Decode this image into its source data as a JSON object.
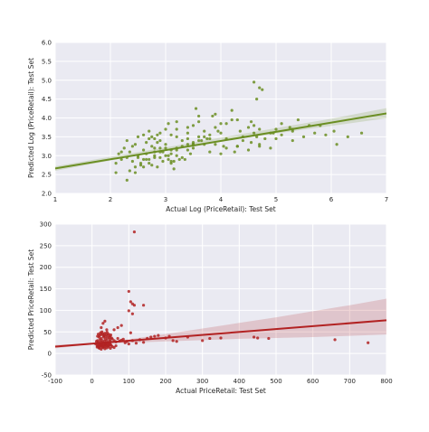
{
  "chart_data": [
    {
      "type": "scatter",
      "xlabel": "Actual Log (PriceRetail): Test Set",
      "ylabel": "Predicted Log (PriceRetail): Test Set",
      "xlim": [
        1,
        7
      ],
      "ylim": [
        2.0,
        6.0
      ],
      "x_ticks": [
        1,
        2,
        3,
        4,
        5,
        6,
        7
      ],
      "y_ticks": [
        2.0,
        2.5,
        3.0,
        3.5,
        4.0,
        4.5,
        5.0,
        5.5,
        6.0
      ],
      "x_tick_labels": [
        "1",
        "2",
        "3",
        "4",
        "5",
        "6",
        "7"
      ],
      "y_tick_labels": [
        "2.0",
        "2.5",
        "3.0",
        "3.5",
        "4.0",
        "4.5",
        "5.0",
        "5.5",
        "6.0"
      ],
      "grid": true,
      "background": "#eaeaf2",
      "point_color": "#6b8e23",
      "line_color": "#6b8e23",
      "ci_color": "#6b8e23",
      "regression": {
        "x": [
          1,
          7
        ],
        "y": [
          2.66,
          4.12
        ]
      },
      "ci_band": {
        "x": [
          1,
          2,
          3,
          4,
          5,
          6,
          7
        ],
        "lower": [
          2.6,
          2.87,
          3.16,
          3.38,
          3.59,
          3.79,
          3.99
        ],
        "upper": [
          2.72,
          2.97,
          3.22,
          3.48,
          3.73,
          3.98,
          4.26
        ]
      },
      "points": {
        "x": [
          2.1,
          2.15,
          2.2,
          2.25,
          2.3,
          2.35,
          2.4,
          2.45,
          2.5,
          2.55,
          2.6,
          2.65,
          2.7,
          2.75,
          2.8,
          2.85,
          2.9,
          2.95,
          3.0,
          3.05,
          2.3,
          2.4,
          2.5,
          2.6,
          2.7,
          2.8,
          2.9,
          3.0,
          3.1,
          3.2,
          2.35,
          2.45,
          2.55,
          2.65,
          2.75,
          2.85,
          2.95,
          3.05,
          3.15,
          3.25,
          2.6,
          2.7,
          2.8,
          2.9,
          3.0,
          3.1,
          3.2,
          3.3,
          3.4,
          3.5,
          2.7,
          2.8,
          2.9,
          3.0,
          3.1,
          3.2,
          3.3,
          3.4,
          3.5,
          3.6,
          3.1,
          3.2,
          3.3,
          3.4,
          3.5,
          3.6,
          3.7,
          3.8,
          3.9,
          4.0,
          3.2,
          3.4,
          3.6,
          3.8,
          4.0,
          4.2,
          4.4,
          4.6,
          4.8,
          5.0,
          3.5,
          3.7,
          3.9,
          4.1,
          4.3,
          4.5,
          4.7,
          4.9,
          5.1,
          5.3,
          4.1,
          4.3,
          4.5,
          4.7,
          4.9,
          5.1,
          5.3,
          5.5,
          5.7,
          5.9,
          2.2,
          2.5,
          2.8,
          3.1,
          3.4,
          3.7,
          4.0,
          4.3,
          2.45,
          2.75,
          3.05,
          3.35,
          3.65,
          3.95,
          4.25,
          4.55,
          2.6,
          2.9,
          3.2,
          3.5,
          3.8,
          4.1,
          4.4,
          4.7,
          5.0,
          5.3,
          2.65,
          2.85,
          3.15,
          3.45,
          3.75,
          4.05,
          4.35,
          4.65,
          4.95,
          5.25,
          2.1,
          2.3,
          3.6,
          3.9,
          4.2,
          4.6,
          5.4,
          5.6,
          6.05,
          6.3,
          6.55,
          6.1,
          4.75,
          4.6,
          4.7,
          4.65,
          4.55,
          5.8,
          3.55,
          3.85
        ],
        "y": [
          2.8,
          3.05,
          2.9,
          3.2,
          2.95,
          3.1,
          2.85,
          3.3,
          3.0,
          2.75,
          3.15,
          3.05,
          2.9,
          3.25,
          3.0,
          3.35,
          2.95,
          3.1,
          3.2,
          2.9,
          3.4,
          3.25,
          3.5,
          2.7,
          3.45,
          3.1,
          3.6,
          3.3,
          3.05,
          3.2,
          2.6,
          2.55,
          2.8,
          2.9,
          2.75,
          2.7,
          2.85,
          3.0,
          2.65,
          2.9,
          3.55,
          3.65,
          3.2,
          3.4,
          3.7,
          3.15,
          3.5,
          3.25,
          3.45,
          3.3,
          2.8,
          2.95,
          3.1,
          3.0,
          2.85,
          3.15,
          2.95,
          3.3,
          3.2,
          3.4,
          3.55,
          3.7,
          3.4,
          3.6,
          3.8,
          3.5,
          3.65,
          3.45,
          3.75,
          3.6,
          3.9,
          3.75,
          4.05,
          3.55,
          3.85,
          3.95,
          3.5,
          3.6,
          3.45,
          3.7,
          3.35,
          3.5,
          3.3,
          3.45,
          3.25,
          3.15,
          3.3,
          3.2,
          3.55,
          3.65,
          3.85,
          3.95,
          3.75,
          3.7,
          3.6,
          3.85,
          3.7,
          3.5,
          3.6,
          3.55,
          3.1,
          2.95,
          3.45,
          2.8,
          3.15,
          3.3,
          3.05,
          3.25,
          2.7,
          3.5,
          3.85,
          2.9,
          3.4,
          3.65,
          3.1,
          3.35,
          2.9,
          3.2,
          3.0,
          3.3,
          3.1,
          3.2,
          3.4,
          3.25,
          3.45,
          3.4,
          3.35,
          3.55,
          2.85,
          3.05,
          3.45,
          3.25,
          3.65,
          3.5,
          3.6,
          3.75,
          2.55,
          2.35,
          3.9,
          4.1,
          4.2,
          3.8,
          3.95,
          3.8,
          3.65,
          3.5,
          3.6,
          3.3,
          4.75,
          4.95,
          4.8,
          4.5,
          3.9,
          3.8,
          4.25,
          4.05
        ]
      }
    },
    {
      "type": "scatter",
      "xlabel": "Actual PriceRetail: Test Set",
      "ylabel": "Predicted PriceRetail: Test Set",
      "xlim": [
        -100,
        800
      ],
      "ylim": [
        -50,
        300
      ],
      "x_ticks": [
        -100,
        0,
        100,
        200,
        300,
        400,
        500,
        600,
        700,
        800
      ],
      "y_ticks": [
        -50,
        0,
        50,
        100,
        150,
        200,
        250,
        300
      ],
      "x_tick_labels": [
        "-100",
        "0",
        "100",
        "200",
        "300",
        "400",
        "500",
        "600",
        "700",
        "800"
      ],
      "y_tick_labels": [
        "-50",
        "0",
        "50",
        "100",
        "150",
        "200",
        "250",
        "300"
      ],
      "grid": true,
      "background": "#eaeaf2",
      "point_color": "#b22222",
      "line_color": "#b22222",
      "ci_color": "#b22222",
      "regression": {
        "x": [
          -100,
          800
        ],
        "y": [
          16,
          77
        ]
      },
      "ci_band": {
        "x": [
          -100,
          0,
          100,
          200,
          300,
          400,
          500,
          600,
          700,
          800
        ],
        "lower": [
          12,
          21,
          25,
          28,
          31,
          34,
          36,
          38,
          41,
          44
        ],
        "upper": [
          20,
          24,
          33,
          45,
          58,
          71,
          84,
          98,
          112,
          127
        ]
      },
      "points": {
        "x": [
          10,
          12,
          14,
          15,
          16,
          18,
          20,
          22,
          24,
          25,
          26,
          28,
          30,
          32,
          34,
          35,
          36,
          38,
          40,
          42,
          45,
          48,
          50,
          55,
          60,
          65,
          70,
          75,
          80,
          85,
          14,
          16,
          18,
          20,
          22,
          24,
          26,
          28,
          30,
          32,
          34,
          36,
          38,
          40,
          42,
          44,
          46,
          48,
          50,
          52,
          15,
          17,
          19,
          21,
          23,
          25,
          27,
          29,
          31,
          33,
          35,
          37,
          39,
          41,
          43,
          45,
          47,
          49,
          51,
          53,
          20,
          25,
          30,
          35,
          40,
          45,
          50,
          55,
          60,
          65,
          90,
          95,
          100,
          110,
          120,
          130,
          140,
          150,
          160,
          170,
          180,
          200,
          210,
          220,
          230,
          260,
          300,
          320,
          350,
          440,
          450,
          480,
          660,
          750,
          100,
          105,
          110,
          115,
          140,
          100,
          110,
          115,
          60,
          70,
          80,
          105,
          30,
          35,
          25,
          40
        ],
        "y": [
          22,
          28,
          18,
          30,
          24,
          26,
          20,
          32,
          27,
          35,
          22,
          30,
          25,
          38,
          28,
          20,
          33,
          24,
          30,
          36,
          26,
          32,
          28,
          34,
          30,
          27,
          35,
          29,
          31,
          33,
          15,
          18,
          14,
          16,
          20,
          17,
          19,
          15,
          21,
          18,
          16,
          22,
          19,
          17,
          23,
          20,
          18,
          24,
          21,
          19,
          40,
          45,
          38,
          42,
          48,
          44,
          50,
          46,
          41,
          43,
          47,
          39,
          44,
          49,
          42,
          45,
          37,
          40,
          43,
          36,
          12,
          10,
          14,
          11,
          13,
          15,
          12,
          16,
          14,
          18,
          25,
          28,
          22,
          30,
          24,
          32,
          26,
          35,
          38,
          40,
          42,
          36,
          40,
          30,
          28,
          38,
          30,
          35,
          36,
          38,
          36,
          35,
          32,
          25,
          144,
          120,
          115,
          112,
          112,
          99,
          92,
          282,
          55,
          60,
          65,
          48,
          70,
          75,
          60,
          55
        ]
      }
    }
  ]
}
